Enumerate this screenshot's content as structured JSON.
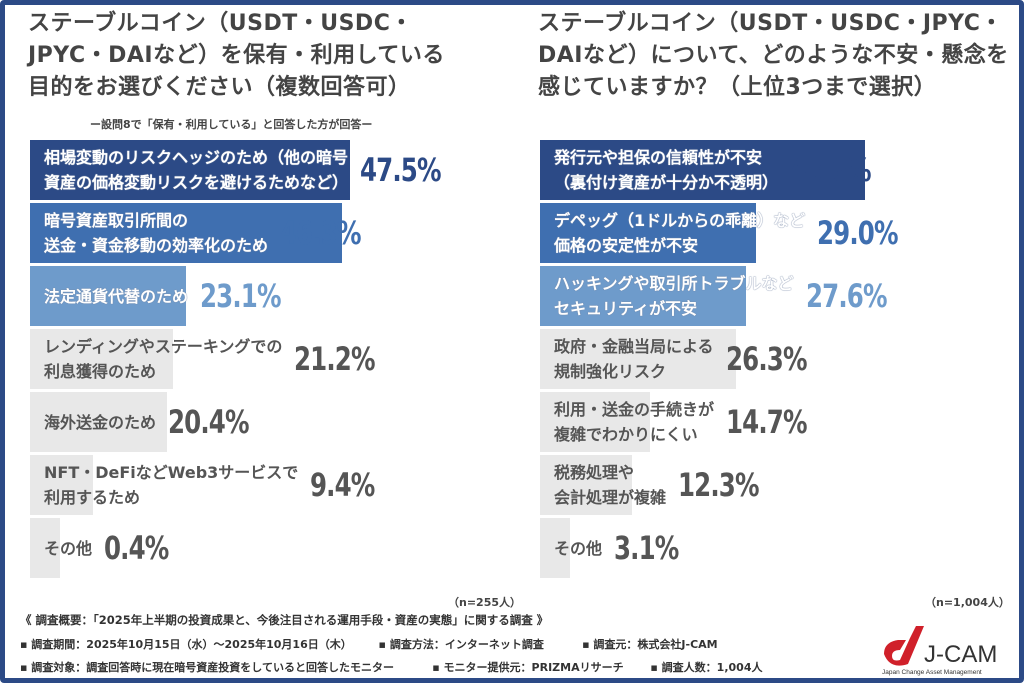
{
  "left": {
    "title": [
      "ステーブルコイン（USDT・USDC・",
      "JPYC・DAIなど）を保有・利用している",
      "目的をお選びください（複数回答可）"
    ],
    "subtitle": "ー設問8で「保有・利用している」と回答した方が回答ー",
    "n": "（n=255人）",
    "items": [
      {
        "label": "相場変動のリスクヘッジのため（他の暗号\n資産の価格変動リスクを避けるためなど）",
        "value": 47.5,
        "display": "47.5%",
        "color": "#2c4a86"
      },
      {
        "label": "暗号資産取引所間の\n送金・資金移動の効率化のため",
        "value": 46.3,
        "display": "46.3%",
        "color": "#3f6fb0"
      },
      {
        "label": "法定通貨代替のため",
        "value": 23.1,
        "display": "23.1%",
        "color": "#6e9bcb"
      },
      {
        "label": "レンディングやステーキングでの\n利息獲得のため",
        "value": 21.2,
        "display": "21.2%",
        "color": "#555555"
      },
      {
        "label": "海外送金のため",
        "value": 20.4,
        "display": "20.4%",
        "color": "#555555"
      },
      {
        "label": "NFT・DeFiなどWeb3サービスで\n利用するため",
        "value": 9.4,
        "display": "9.4%",
        "color": "#555555"
      },
      {
        "label": "その他",
        "value": 0.4,
        "display": "0.4%",
        "color": "#555555"
      }
    ]
  },
  "right": {
    "title": [
      "ステーブルコイン（USDT・USDC・JPYC・",
      "DAIなど）について、どのような不安・懸念を",
      "感じていますか？（上位3つまで選択）"
    ],
    "n": "（n=1,004人）",
    "items": [
      {
        "label": "発行元や担保の信頼性が不安\n（裏付け資産が十分か不透明）",
        "value": 43.6,
        "display": "43.6%",
        "color": "#2c4a86"
      },
      {
        "label": "デペッグ（1ドルからの乖離）など\n価格の安定性が不安",
        "value": 29.0,
        "display": "29.0%",
        "color": "#3f6fb0"
      },
      {
        "label": "ハッキングや取引所トラブルなど\nセキュリティが不安",
        "value": 27.6,
        "display": "27.6%",
        "color": "#6e9bcb"
      },
      {
        "label": "政府・金融当局による\n規制強化リスク",
        "value": 26.3,
        "display": "26.3%",
        "color": "#555555"
      },
      {
        "label": "利用・送金の手続きが\n複雑でわかりにくい",
        "value": 14.7,
        "display": "14.7%",
        "color": "#555555"
      },
      {
        "label": "税務処理や\n会計処理が複雑",
        "value": 12.3,
        "display": "12.3%",
        "color": "#555555"
      },
      {
        "label": "その他",
        "value": 3.1,
        "display": "3.1%",
        "color": "#555555"
      }
    ]
  },
  "chart_data": [
    {
      "type": "bar",
      "orientation": "horizontal",
      "title": "ステーブルコイン（USDT・USDC・JPYC・DAIなど）を保有・利用している目的をお選びください（複数回答可）",
      "categories": [
        "相場変動のリスクヘッジのため（他の暗号資産の価格変動リスクを避けるためなど）",
        "暗号資産取引所間の送金・資金移動の効率化のため",
        "法定通貨代替のため",
        "レンディングやステーキングでの利息獲得のため",
        "海外送金のため",
        "NFT・DeFiなどWeb3サービスで利用するため",
        "その他"
      ],
      "values": [
        47.5,
        46.3,
        23.1,
        21.2,
        20.4,
        9.4,
        0.4
      ],
      "unit": "%"
    },
    {
      "type": "bar",
      "orientation": "horizontal",
      "title": "ステーブルコイン（USDT・USDC・JPYC・DAIなど）について、どのような不安・懸念を感じていますか？（上位3つまで選択）",
      "categories": [
        "発行元や担保の信頼性が不安（裏付け資産が十分か不透明）",
        "デペッグ（1ドルからの乖離）など価格の安定性が不安",
        "ハッキングや取引所トラブルなどセキュリティが不安",
        "政府・金融当局による規制強化リスク",
        "利用・送金の手続きが複雑でわかりにくい",
        "税務処理や会計処理が複雑",
        "その他"
      ],
      "values": [
        43.6,
        29.0,
        27.6,
        26.3,
        14.7,
        12.3,
        3.1
      ],
      "unit": "%"
    }
  ],
  "footer": {
    "overview": "《 調査概要：「2025年上半期の投資成果と、今後注目される運用手段・資産の実態」に関する調査 》",
    "line2": "▪ 調査期間：2025年10月15日（水）～2025年10月16日（木）       ▪ 調査方法：インターネット調査          ▪ 調査元：株式会社J-CAM",
    "line3": "▪ 調査対象：調査回答時に現在暗号資産投資をしていると回答したモニター          ▪ モニター提供元：PRIZMAリサーチ       ▪ 調査人数：1,004人",
    "logo_text": "J-CAM",
    "logo_sub": "Japan Change Asset Management"
  }
}
